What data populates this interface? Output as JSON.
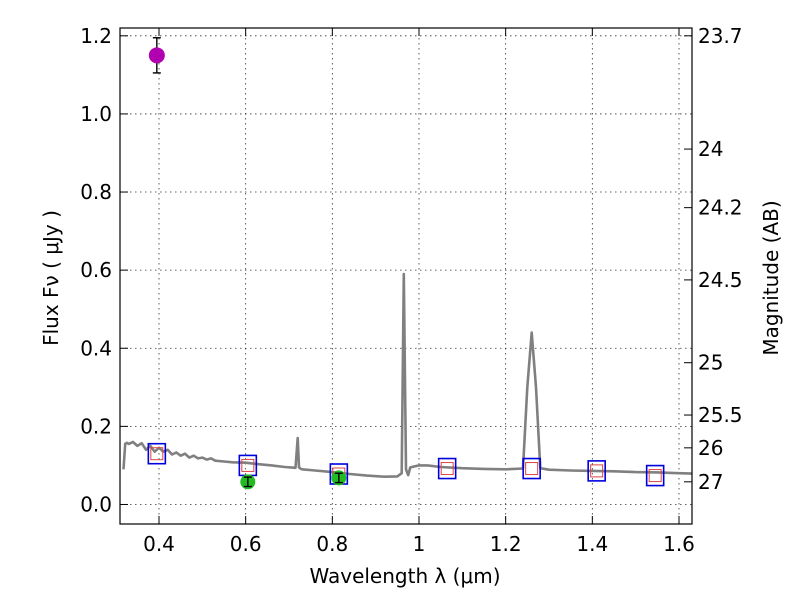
{
  "chart_data": {
    "type": "scatter",
    "title": "",
    "xlabel": "Wavelength  λ (μm)",
    "ylabel": "Flux  Fν  ( μJy )",
    "y2label": "Magnitude (AB)",
    "xlim": [
      0.31,
      1.63
    ],
    "ylim": [
      -0.05,
      1.22
    ],
    "xticks": [
      0.4,
      0.6,
      0.8,
      1.0,
      1.2,
      1.4,
      1.6
    ],
    "xtick_labels": [
      "0.4",
      "0.6",
      "0.8",
      "1",
      "1.2",
      "1.4",
      "1.6"
    ],
    "yticks": [
      0.0,
      0.2,
      0.4,
      0.6,
      0.8,
      1.0,
      1.2
    ],
    "ytick_labels": [
      "0.0",
      "0.2",
      "0.4",
      "0.6",
      "0.8",
      "1.0",
      "1.2"
    ],
    "y2ticks": [
      {
        "label": "23.7",
        "flux": 1.2
      },
      {
        "label": "24",
        "flux": 0.91
      },
      {
        "label": "24.2",
        "flux": 0.76
      },
      {
        "label": "24.5",
        "flux": 0.575
      },
      {
        "label": "25",
        "flux": 0.363
      },
      {
        "label": "25.5",
        "flux": 0.229
      },
      {
        "label": "26",
        "flux": 0.145
      },
      {
        "label": "27",
        "flux": 0.058
      }
    ],
    "grid": true,
    "colors": {
      "sed": "#808080",
      "detection": "#b000b0",
      "measured": "#22bb22",
      "model_box": "#0000dd",
      "model_box_inner": "#dd4444",
      "errorbar": "#000000"
    },
    "series": [
      {
        "name": "SED template",
        "kind": "line",
        "x": [
          0.318,
          0.322,
          0.326,
          0.33,
          0.34,
          0.35,
          0.36,
          0.37,
          0.38,
          0.39,
          0.4,
          0.41,
          0.42,
          0.43,
          0.44,
          0.45,
          0.46,
          0.47,
          0.48,
          0.49,
          0.5,
          0.51,
          0.52,
          0.53,
          0.55,
          0.57,
          0.6,
          0.63,
          0.66,
          0.69,
          0.715,
          0.72,
          0.723,
          0.726,
          0.73,
          0.76,
          0.8,
          0.84,
          0.88,
          0.92,
          0.95,
          0.96,
          0.965,
          0.97,
          0.975,
          0.98,
          1.0,
          1.02,
          1.05,
          1.1,
          1.15,
          1.2,
          1.24,
          1.25,
          1.26,
          1.27,
          1.28,
          1.3,
          1.35,
          1.4,
          1.45,
          1.5,
          1.55,
          1.6,
          1.63
        ],
        "y": [
          0.09,
          0.155,
          0.158,
          0.155,
          0.16,
          0.15,
          0.157,
          0.14,
          0.15,
          0.135,
          0.145,
          0.135,
          0.14,
          0.128,
          0.133,
          0.125,
          0.13,
          0.12,
          0.125,
          0.118,
          0.12,
          0.115,
          0.118,
          0.112,
          0.11,
          0.108,
          0.107,
          0.103,
          0.1,
          0.096,
          0.094,
          0.17,
          0.095,
          0.092,
          0.09,
          0.087,
          0.083,
          0.078,
          0.074,
          0.071,
          0.072,
          0.08,
          0.59,
          0.09,
          0.075,
          0.095,
          0.1,
          0.1,
          0.096,
          0.093,
          0.091,
          0.09,
          0.092,
          0.3,
          0.44,
          0.3,
          0.093,
          0.089,
          0.087,
          0.086,
          0.085,
          0.083,
          0.082,
          0.08,
          0.079
        ]
      },
      {
        "name": "Detection",
        "kind": "point",
        "points": [
          {
            "x": 0.395,
            "y": 1.15,
            "err": 0.045
          }
        ]
      },
      {
        "name": "Measured photometry",
        "kind": "point",
        "points": [
          {
            "x": 0.605,
            "y": 0.058,
            "err": 0.012
          },
          {
            "x": 0.815,
            "y": 0.068,
            "err": 0.012
          }
        ]
      },
      {
        "name": "Model photometry",
        "kind": "box",
        "points": [
          {
            "x": 0.395,
            "y": 0.13
          },
          {
            "x": 0.605,
            "y": 0.1
          },
          {
            "x": 0.815,
            "y": 0.078
          },
          {
            "x": 1.065,
            "y": 0.092
          },
          {
            "x": 1.26,
            "y": 0.092
          },
          {
            "x": 1.41,
            "y": 0.086
          },
          {
            "x": 1.545,
            "y": 0.074
          }
        ]
      }
    ]
  }
}
